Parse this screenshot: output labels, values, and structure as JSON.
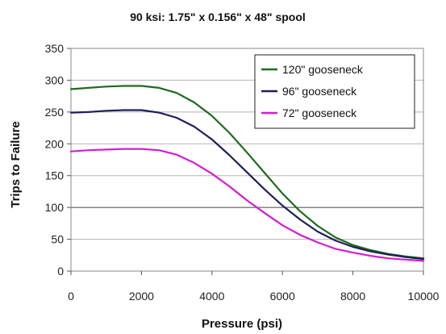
{
  "chart_data": {
    "type": "line",
    "title": "90 ksi: 1.75\" x 0.156\" x 48\" spool",
    "xlabel": "Pressure (psi)",
    "ylabel": "Trips to Failure",
    "xlim": [
      0,
      10000
    ],
    "ylim": [
      0,
      350
    ],
    "x_ticks": [
      0,
      2000,
      4000,
      6000,
      8000,
      10000
    ],
    "y_ticks": [
      0,
      50,
      100,
      150,
      200,
      250,
      300,
      350
    ],
    "x_tick_labels": [
      "0",
      "2000",
      "4000",
      "6000",
      "8000",
      "10000"
    ],
    "y_tick_labels": [
      "0",
      "50",
      "100",
      "150",
      "200",
      "250",
      "300",
      "350"
    ],
    "grid": "horizontal",
    "legend_position": "top-right",
    "x": [
      0,
      500,
      1000,
      1500,
      2000,
      2500,
      3000,
      3500,
      4000,
      4500,
      5000,
      5500,
      6000,
      6500,
      7000,
      7500,
      8000,
      8500,
      9000,
      9500,
      10000
    ],
    "series": [
      {
        "name": "120\" gooseneck",
        "color": "#1e6b1e",
        "values": [
          286,
          288,
          290,
          291,
          291,
          288,
          280,
          265,
          244,
          217,
          186,
          154,
          122,
          94,
          71,
          53,
          41,
          33,
          27,
          23,
          20
        ]
      },
      {
        "name": "96\" gooseneck",
        "color": "#1f1f5c",
        "values": [
          249,
          250,
          252,
          253,
          253,
          249,
          241,
          227,
          207,
          182,
          155,
          128,
          103,
          81,
          62,
          48,
          38,
          31,
          26,
          22,
          19
        ]
      },
      {
        "name": "72\" gooseneck",
        "color": "#d11fd1",
        "values": [
          188,
          190,
          191,
          192,
          192,
          190,
          183,
          170,
          153,
          133,
          111,
          91,
          72,
          57,
          45,
          35,
          29,
          24,
          20,
          18,
          16
        ]
      }
    ]
  }
}
